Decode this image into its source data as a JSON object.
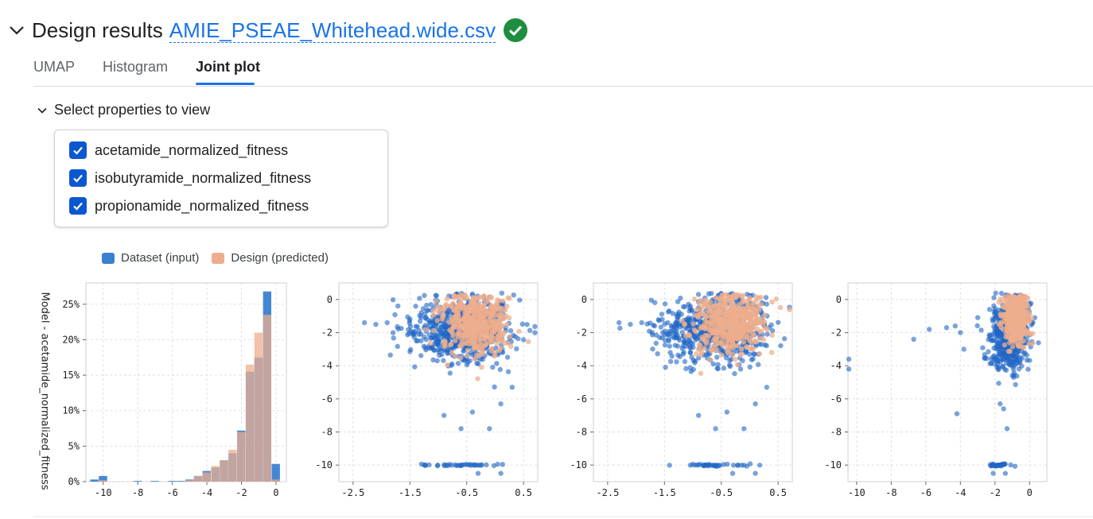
{
  "header": {
    "title": "Design results",
    "file_name": "AMIE_PSEAE_Whitehead.wide.csv",
    "status_icon": "check-circle-icon",
    "status_color": "#1e8e3e"
  },
  "tabs": [
    {
      "label": "UMAP",
      "active": false
    },
    {
      "label": "Histogram",
      "active": false
    },
    {
      "label": "Joint plot",
      "active": true
    }
  ],
  "properties": {
    "toggle_label": "Select properties to view",
    "items": [
      {
        "label": "acetamide_normalized_fitness",
        "checked": true
      },
      {
        "label": "isobutyramide_normalized_fitness",
        "checked": true
      },
      {
        "label": "propionamide_normalized_fitness",
        "checked": true
      }
    ]
  },
  "legend": [
    {
      "label": "Dataset (input)",
      "color": "#3b7fd1"
    },
    {
      "label": "Design (predicted)",
      "color": "#eeae8c"
    }
  ],
  "chart_data": [
    {
      "type": "bar",
      "ylabel": "Model - acetamide_normalized_fitness",
      "xticks": [
        "-10",
        "-8",
        "-6",
        "-4",
        "-2",
        "0"
      ],
      "yticks": [
        "0%",
        "5%",
        "10%",
        "15%",
        "20%",
        "25%"
      ],
      "xlim": [
        -11,
        0.6
      ],
      "ylim": [
        0,
        28
      ],
      "bin_width": 0.5,
      "series": [
        {
          "name": "Dataset (input)",
          "color": "#3b7fd1",
          "bins": [
            [
              -10.5,
              0.3
            ],
            [
              -10,
              0.8
            ],
            [
              -8,
              0.1
            ],
            [
              -7,
              0.1
            ],
            [
              -6,
              0.1
            ],
            [
              -5.5,
              0.1
            ],
            [
              -5,
              0.3
            ],
            [
              -4.5,
              0.8
            ],
            [
              -4,
              1.5
            ],
            [
              -3.5,
              2.0
            ],
            [
              -3,
              3.0
            ],
            [
              -2.5,
              4.0
            ],
            [
              -2,
              7.2
            ],
            [
              -1.5,
              15.5
            ],
            [
              -1,
              17.5
            ],
            [
              -0.5,
              26.8
            ],
            [
              0,
              2.5
            ]
          ]
        },
        {
          "name": "Design (predicted)",
          "color": "#eeae8c",
          "bins": [
            [
              -10,
              0.2
            ],
            [
              -5,
              0.2
            ],
            [
              -4.5,
              0.8
            ],
            [
              -4,
              1.3
            ],
            [
              -3.5,
              2.2
            ],
            [
              -3,
              3.0
            ],
            [
              -2.5,
              4.5
            ],
            [
              -2,
              7.0
            ],
            [
              -1.5,
              16.5
            ],
            [
              -1,
              21.0
            ],
            [
              -0.5,
              23.5
            ],
            [
              0,
              0.3
            ]
          ]
        }
      ]
    },
    {
      "type": "scatter",
      "xticks": [
        "-2.5",
        "-1.5",
        "-0.5",
        "0.5"
      ],
      "yticks": [
        "0",
        "-2",
        "-4",
        "-6",
        "-8",
        "-10"
      ],
      "xlim": [
        -2.75,
        0.75
      ],
      "ylim": [
        -11,
        1
      ],
      "dataset_clusters": [
        {
          "cx": -0.45,
          "cy": -1.8,
          "sx": 0.38,
          "sy": 1.0,
          "n": 520
        },
        {
          "cx": -1.1,
          "cy": -1.8,
          "sx": 0.35,
          "sy": 0.9,
          "n": 140
        },
        {
          "cx": -0.6,
          "cy": -10.0,
          "sx": 0.35,
          "sy": 0.03,
          "n": 36
        }
      ],
      "design_clusters": [
        {
          "cx": -0.35,
          "cy": -1.4,
          "sx": 0.28,
          "sy": 0.9,
          "n": 500
        }
      ],
      "outliers": [
        [
          -2.3,
          -1.4
        ],
        [
          -2.1,
          -1.5
        ],
        [
          -1.9,
          -1.4
        ],
        [
          -0.9,
          -7.0
        ],
        [
          -0.6,
          -7.8
        ],
        [
          -0.4,
          -6.8
        ],
        [
          0.1,
          -6.3
        ],
        [
          0.3,
          -5.3
        ],
        [
          -0.1,
          -7.8
        ],
        [
          -0.3,
          -10.5
        ],
        [
          0.1,
          -10.5
        ]
      ]
    },
    {
      "type": "scatter",
      "xticks": [
        "-2.5",
        "-1.5",
        "-0.5",
        "0.5"
      ],
      "yticks": [
        "0",
        "-2",
        "-4",
        "-6",
        "-8",
        "-10"
      ],
      "xlim": [
        -2.75,
        0.75
      ],
      "ylim": [
        -11,
        1
      ],
      "dataset_clusters": [
        {
          "cx": -0.45,
          "cy": -1.8,
          "sx": 0.38,
          "sy": 1.0,
          "n": 520
        },
        {
          "cx": -1.1,
          "cy": -1.8,
          "sx": 0.35,
          "sy": 0.9,
          "n": 140
        },
        {
          "cx": -0.6,
          "cy": -10.0,
          "sx": 0.35,
          "sy": 0.03,
          "n": 36
        }
      ],
      "design_clusters": [
        {
          "cx": -0.35,
          "cy": -1.4,
          "sx": 0.3,
          "sy": 0.9,
          "n": 500
        }
      ],
      "outliers": [
        [
          -2.3,
          -1.4
        ],
        [
          -2.1,
          -1.5
        ],
        [
          -1.9,
          -1.4
        ],
        [
          -0.9,
          -7.0
        ],
        [
          -0.6,
          -7.8
        ],
        [
          -0.4,
          -6.8
        ],
        [
          0.1,
          -6.3
        ],
        [
          0.3,
          -5.3
        ],
        [
          -0.1,
          -7.8
        ],
        [
          -0.3,
          -10.5
        ],
        [
          0.1,
          -10.5
        ]
      ]
    },
    {
      "type": "scatter",
      "xticks": [
        "-10",
        "-8",
        "-6",
        "-4",
        "-2",
        "0"
      ],
      "yticks": [
        "0",
        "-2",
        "-4",
        "-6",
        "-8",
        "-10"
      ],
      "xlim": [
        -10.5,
        1
      ],
      "ylim": [
        -11,
        1
      ],
      "dataset_clusters": [
        {
          "cx": -1.3,
          "cy": -2.2,
          "sx": 0.55,
          "sy": 1.0,
          "n": 480
        },
        {
          "cx": -0.6,
          "cy": -0.9,
          "sx": 0.35,
          "sy": 0.5,
          "n": 160
        },
        {
          "cx": -1.8,
          "cy": -10.0,
          "sx": 0.3,
          "sy": 0.03,
          "n": 30
        }
      ],
      "design_clusters": [
        {
          "cx": -0.8,
          "cy": -1.2,
          "sx": 0.35,
          "sy": 0.7,
          "n": 480
        }
      ],
      "outliers": [
        [
          -10.5,
          -3.6
        ],
        [
          -10.5,
          -4.2
        ],
        [
          -6.7,
          -2.4
        ],
        [
          -5.8,
          -1.8
        ],
        [
          -4.8,
          -1.7
        ],
        [
          -4.3,
          -1.6
        ],
        [
          -4.0,
          -2.0
        ],
        [
          -3.8,
          -3.0
        ],
        [
          -4.2,
          -6.9
        ],
        [
          -1.7,
          -6.3
        ],
        [
          -1.5,
          -6.6
        ],
        [
          -1.3,
          -7.8
        ],
        [
          -1.4,
          -10.5
        ],
        [
          -2.1,
          -10.5
        ]
      ]
    }
  ]
}
